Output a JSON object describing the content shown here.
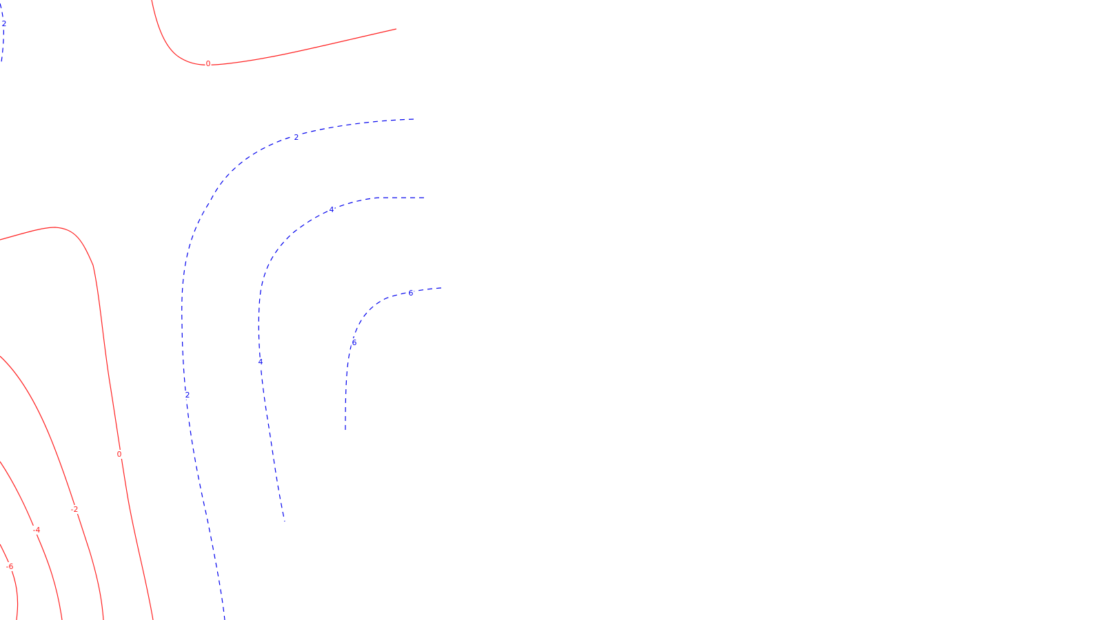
{
  "colors": {
    "background": "#ffffff",
    "negative_and_zero": "#ff2020",
    "positive": "#0000ee"
  },
  "line_styles": {
    "negative_and_zero": "solid",
    "positive": "dashed"
  },
  "contour_labels": {
    "c_pos2_corner": "2",
    "c_zero_top": "0",
    "c_pos2": "2",
    "c_pos2_lower": "2",
    "c_pos4": "4",
    "c_pos4_lower": "4",
    "c_pos6": "6",
    "c_pos6_lower": "6",
    "c_zero_left": "0",
    "c_neg2": "-2",
    "c_neg4": "-4",
    "c_neg6": "-6"
  }
}
